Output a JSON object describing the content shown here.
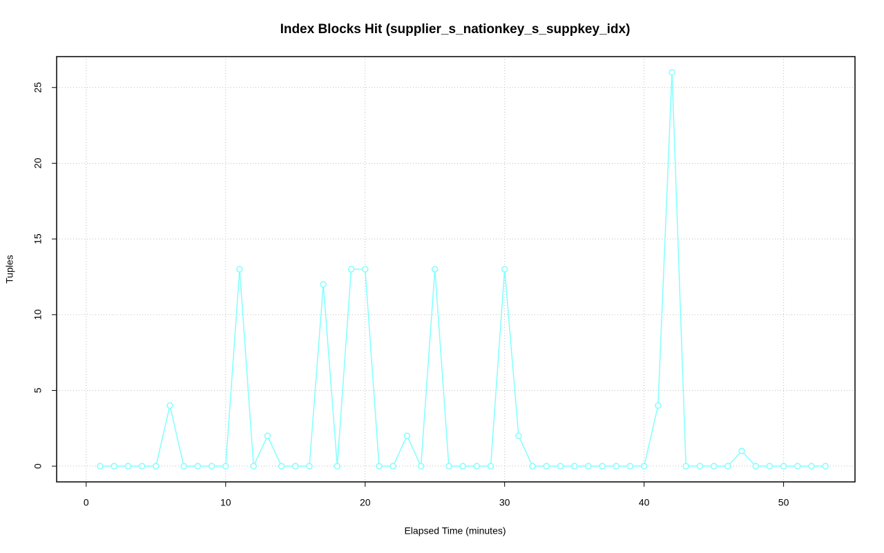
{
  "chart_data": {
    "type": "line",
    "title": "Index Blocks Hit (supplier_s_nationkey_s_suppkey_idx)",
    "x_label": "Elapsed Time (minutes)",
    "y_label": "Tuples",
    "x": [
      1,
      2,
      3,
      4,
      5,
      6,
      7,
      8,
      9,
      10,
      11,
      12,
      13,
      14,
      15,
      16,
      17,
      18,
      19,
      20,
      21,
      22,
      23,
      24,
      25,
      26,
      27,
      28,
      29,
      30,
      31,
      32,
      33,
      34,
      35,
      36,
      37,
      38,
      39,
      40,
      41,
      42,
      43,
      44,
      45,
      46,
      47,
      48,
      49,
      50,
      51,
      52,
      53
    ],
    "series": [
      {
        "color": "#80ffff",
        "values": [
          0,
          0,
          0,
          0,
          0,
          4,
          0,
          0,
          0,
          0,
          13,
          0,
          2,
          0,
          0,
          0,
          12,
          0,
          13,
          13,
          0,
          0,
          2,
          0,
          13,
          0,
          0,
          0,
          0,
          13,
          2,
          0,
          0,
          0,
          0,
          0,
          0,
          0,
          0,
          0,
          4,
          26,
          0,
          0,
          0,
          0,
          1,
          0,
          0,
          0,
          0,
          0,
          0
        ]
      }
    ],
    "xlim": [
      -2.12,
      55.12
    ],
    "ylim": [
      -1.04,
      27.04
    ],
    "xticks": [
      0,
      10,
      20,
      30,
      40,
      50
    ],
    "yticks": [
      0,
      5,
      10,
      15,
      20,
      25
    ],
    "grid": true
  }
}
